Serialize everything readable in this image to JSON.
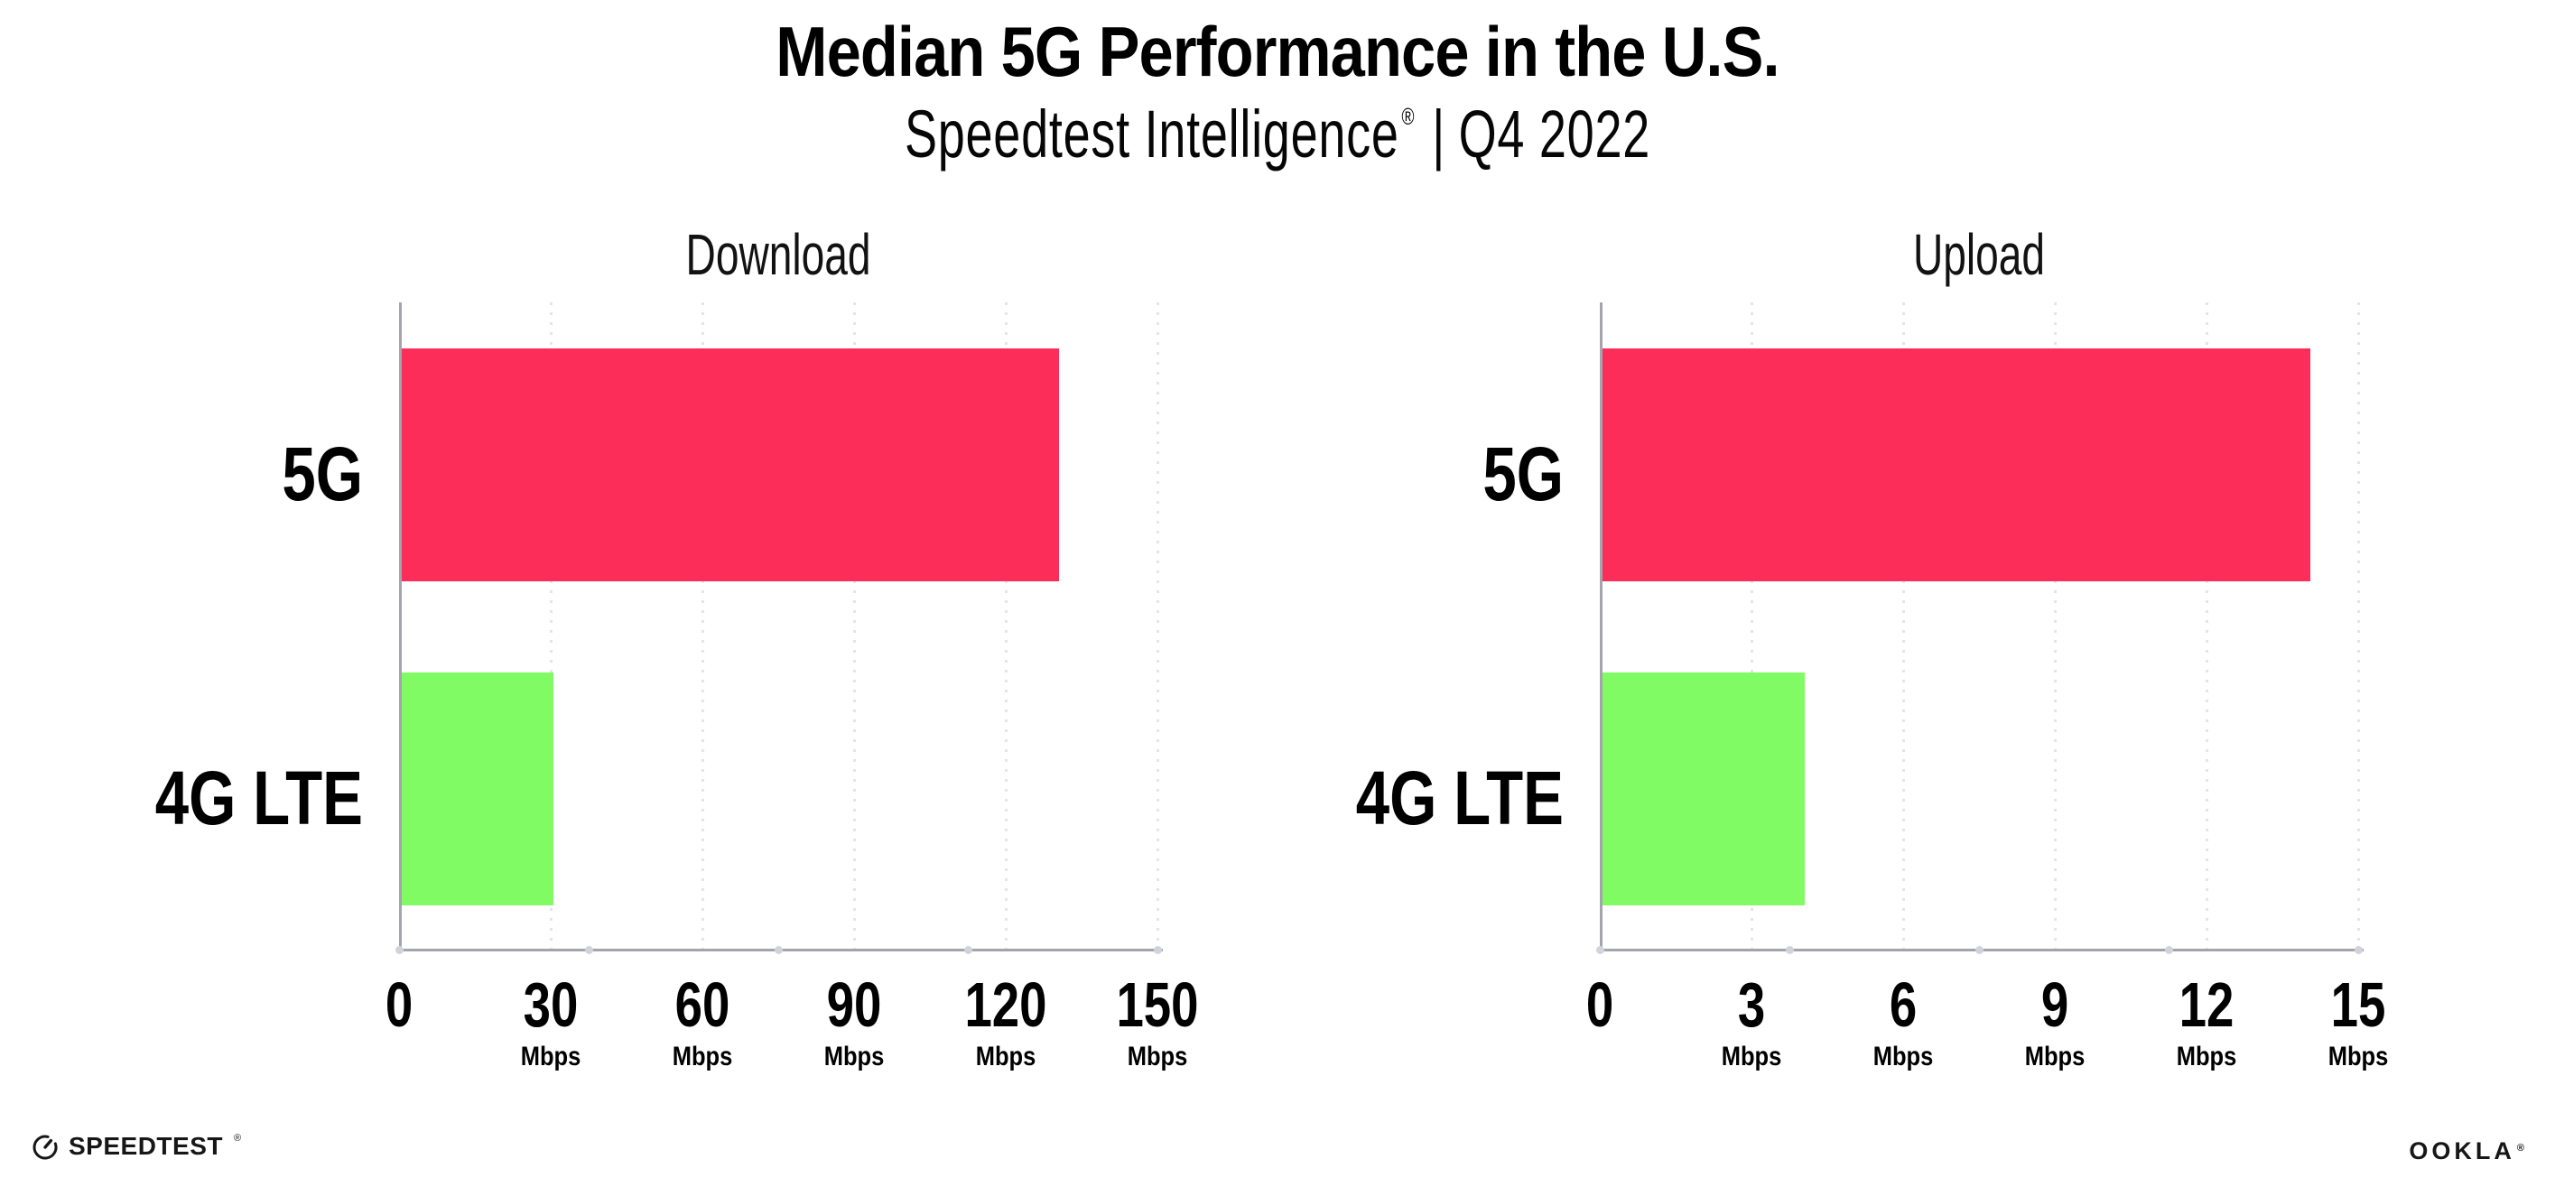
{
  "header": {
    "title": "Median 5G Performance in the U.S.",
    "subtitle_brand": "Speedtest Intelligence",
    "subtitle_mark": "®",
    "subtitle_sep": "|",
    "subtitle_period": "Q4 2022"
  },
  "chart_data": [
    {
      "type": "bar",
      "orientation": "horizontal",
      "title": "Download",
      "categories": [
        "5G",
        "4G LTE"
      ],
      "values": [
        130,
        30
      ],
      "unit": "Mbps",
      "xlim": [
        0,
        150
      ],
      "xticks": [
        0,
        30,
        60,
        90,
        120,
        150
      ],
      "bar_colors": [
        "#fd2d5a",
        "#80fb64"
      ],
      "grid": "dotted vertical gridlines at labeled ticks",
      "legend": "none"
    },
    {
      "type": "bar",
      "orientation": "horizontal",
      "title": "Upload",
      "categories": [
        "5G",
        "4G LTE"
      ],
      "values": [
        14,
        4
      ],
      "unit": "Mbps",
      "xlim": [
        0,
        15
      ],
      "xticks": [
        0,
        3,
        6,
        9,
        12,
        15
      ],
      "bar_colors": [
        "#fd2d5a",
        "#80fb64"
      ],
      "grid": "dotted vertical gridlines at labeled ticks",
      "legend": "none"
    }
  ],
  "footer": {
    "speedtest_wordmark": "SPEEDTEST",
    "speedtest_mark": "®",
    "ookla_wordmark": "OOKLA",
    "ookla_mark": "®"
  },
  "colors": {
    "bar_5g": "#fd2d5a",
    "bar_4g_lte": "#80fb64",
    "axis_line": "#a4a4ac",
    "gridline": "#e4e4ee",
    "tick_dot": "#d2d2dc",
    "text": "#000000"
  }
}
